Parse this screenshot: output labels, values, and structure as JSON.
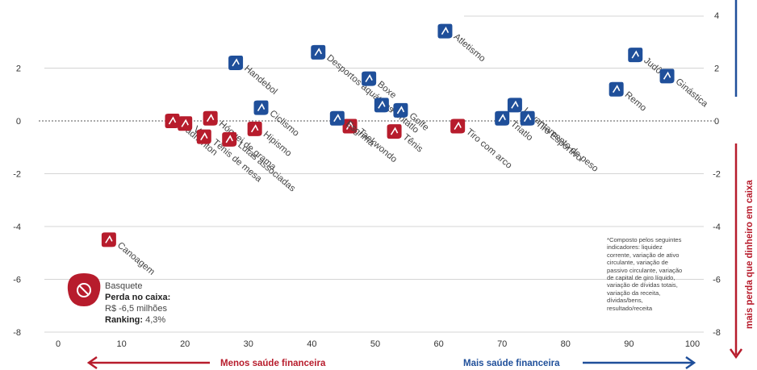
{
  "chart_data": {
    "type": "scatter",
    "xlim": [
      0,
      100
    ],
    "ylim": [
      -8,
      4
    ],
    "x_ticks": [
      "0",
      "10",
      "20",
      "30",
      "40",
      "50",
      "60",
      "70",
      "80",
      "90",
      "100"
    ],
    "y_ticks_left": [
      "2",
      "0",
      "-2",
      "-4",
      "-6",
      "-8"
    ],
    "y_ticks_right": [
      "4",
      "2",
      "0",
      "-2",
      "-4",
      "-6",
      "-8"
    ],
    "colors": {
      "positive": "#1f4f9a",
      "negative": "#b71c2c",
      "grid": "#d4d4d4"
    },
    "points": [
      {
        "label": "Canoagem",
        "x": 8,
        "y": -4.5,
        "color": "negative"
      },
      {
        "label": "Badminton",
        "x": 18,
        "y": 0,
        "color": "negative"
      },
      {
        "label": "Vela",
        "x": 20,
        "y": -0.1,
        "color": "negative"
      },
      {
        "label": "Hóquei de grama",
        "x": 24,
        "y": 0.1,
        "color": "negative"
      },
      {
        "label": "Tênis de mesa",
        "x": 23,
        "y": -0.6,
        "color": "negative"
      },
      {
        "label": "Lutas associadas",
        "x": 27,
        "y": -0.7,
        "color": "negative"
      },
      {
        "label": "Hipismo",
        "x": 31,
        "y": -0.3,
        "color": "negative"
      },
      {
        "label": "Taekwondo",
        "x": 46,
        "y": -0.2,
        "color": "negative"
      },
      {
        "label": "Tênis",
        "x": 53,
        "y": -0.4,
        "color": "negative"
      },
      {
        "label": "Tiro com arco",
        "x": 63,
        "y": -0.2,
        "color": "negative"
      },
      {
        "label": "Handebol",
        "x": 28,
        "y": 2.2,
        "color": "positive"
      },
      {
        "label": "Ciclismo",
        "x": 32,
        "y": 0.5,
        "color": "positive"
      },
      {
        "label": "Esgrima",
        "x": 44,
        "y": 0.1,
        "color": "positive"
      },
      {
        "label": "Desportos aquáticos",
        "x": 41,
        "y": 2.6,
        "color": "positive"
      },
      {
        "label": "Boxe",
        "x": 49,
        "y": 1.6,
        "color": "positive"
      },
      {
        "label": "Pentatlo",
        "x": 51,
        "y": 0.6,
        "color": "positive"
      },
      {
        "label": "Golfe",
        "x": 54,
        "y": 0.4,
        "color": "positive"
      },
      {
        "label": "Atletismo",
        "x": 61,
        "y": 3.4,
        "color": "positive"
      },
      {
        "label": "Levantamento de peso",
        "x": 72,
        "y": 0.6,
        "color": "positive"
      },
      {
        "label": "Triatlo",
        "x": 70,
        "y": 0.1,
        "color": "positive"
      },
      {
        "label": "Tiro Esportivo",
        "x": 74,
        "y": 0.1,
        "color": "positive"
      },
      {
        "label": "Remo",
        "x": 88,
        "y": 1.2,
        "color": "positive"
      },
      {
        "label": "Judô",
        "x": 91,
        "y": 2.5,
        "color": "positive"
      },
      {
        "label": "Ginástica",
        "x": 96,
        "y": 1.7,
        "color": "positive"
      }
    ]
  },
  "legend_box": {
    "sport": "Basquete",
    "loss_label": "Perda no caixa:",
    "loss_value": "R$ -6,5 milhões",
    "ranking_label": "Ranking:",
    "ranking_value": "4,3%"
  },
  "footnote": "*Composto pelos seguintes indicadores: liquidez corrente, variação de ativo circulante, variação de passivo circulante, variação de capital de giro líquido, variação de dívidas totais, variação da receita, dívidas/bens, resultado/receita",
  "footer": {
    "less": "Menos saúde financeira",
    "more": "Mais saúde financeira",
    "right_axis": "mais perda que dinheiro em caixa"
  }
}
